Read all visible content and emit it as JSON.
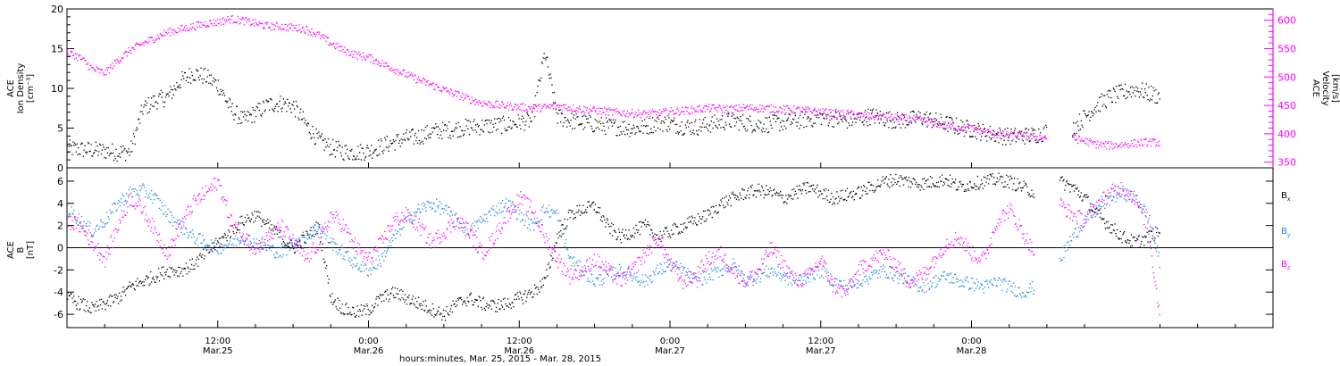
{
  "chart_data": [
    {
      "type": "scatter",
      "panel": "top",
      "ylabel_left": [
        "ACE",
        "Ion Density",
        "[cm⁻³]"
      ],
      "ylabel_right": [
        "ACE",
        "Velocity",
        "[km/s]"
      ],
      "yticks_left": [
        "0",
        "5",
        "10",
        "15",
        "20"
      ],
      "yticks_right": [
        "350",
        "400",
        "450",
        "500",
        "550",
        "600"
      ],
      "ylim_left": [
        0,
        20
      ],
      "ylim_right": [
        340,
        620
      ],
      "xlim_hours": [
        0,
        96
      ],
      "grid": false,
      "series": [
        {
          "axis": "left",
          "color": "#000000",
          "x": [
            0,
            1,
            2,
            3,
            4,
            5,
            6,
            7,
            8,
            9,
            10,
            11,
            12,
            13,
            14,
            15,
            16,
            17,
            18,
            19,
            20,
            21,
            22,
            23,
            24,
            25,
            26,
            27,
            28,
            29,
            30,
            31,
            32,
            33,
            34,
            35,
            36,
            37,
            38,
            39,
            40,
            41,
            42,
            43,
            44,
            45,
            46,
            47,
            48,
            49,
            50,
            51,
            52,
            53,
            54,
            55,
            56,
            57,
            58,
            59,
            60,
            61,
            62,
            63,
            64,
            65,
            66,
            67,
            68,
            69,
            70,
            71,
            72,
            73,
            74,
            75,
            76,
            77,
            78,
            79,
            80,
            81,
            82,
            83,
            84,
            85,
            86,
            87
          ],
          "y": [
            2.5,
            2.4,
            2.3,
            2.2,
            2.0,
            2.1,
            7.5,
            8.5,
            9.0,
            11.0,
            12.0,
            11.5,
            10.5,
            7.5,
            6.0,
            7.0,
            8.0,
            8.2,
            7.8,
            5.5,
            3.5,
            2.6,
            2.1,
            2.0,
            2.2,
            2.8,
            3.3,
            3.8,
            4.0,
            4.6,
            4.8,
            5.0,
            5.2,
            5.3,
            5.4,
            5.5,
            5.8,
            6.0,
            14.5,
            6.5,
            6.0,
            5.8,
            5.5,
            5.3,
            5.2,
            5.0,
            5.2,
            5.8,
            5.6,
            5.3,
            5.2,
            5.5,
            5.8,
            6.0,
            5.7,
            5.5,
            5.6,
            5.8,
            6.0,
            6.2,
            6.5,
            6.3,
            6.0,
            6.2,
            6.6,
            6.3,
            6.0,
            6.1,
            6.4,
            6.0,
            5.6,
            5.2,
            4.9,
            4.5,
            4.2,
            4.0,
            4.1,
            4.2,
            4.6,
            null,
            5.0,
            6.5,
            8.0,
            9.0,
            9.5,
            10.0,
            9.5,
            9.0
          ]
        },
        {
          "axis": "right",
          "color": "#ff00ff",
          "x": [
            0,
            1,
            2,
            3,
            4,
            5,
            6,
            7,
            8,
            9,
            10,
            11,
            12,
            13,
            14,
            15,
            16,
            17,
            18,
            19,
            20,
            21,
            22,
            23,
            24,
            25,
            26,
            27,
            28,
            29,
            30,
            31,
            32,
            33,
            34,
            35,
            36,
            37,
            38,
            39,
            40,
            41,
            42,
            43,
            44,
            45,
            46,
            47,
            48,
            49,
            50,
            51,
            52,
            53,
            54,
            55,
            56,
            57,
            58,
            59,
            60,
            61,
            62,
            63,
            64,
            65,
            66,
            67,
            68,
            69,
            70,
            71,
            72,
            73,
            74,
            75,
            76,
            77,
            78,
            79,
            80,
            81,
            82,
            83,
            84,
            85,
            86,
            87
          ],
          "y": [
            545,
            535,
            515,
            508,
            530,
            548,
            560,
            570,
            580,
            585,
            590,
            595,
            598,
            603,
            600,
            595,
            590,
            590,
            588,
            585,
            575,
            560,
            548,
            540,
            535,
            525,
            515,
            505,
            495,
            487,
            478,
            470,
            462,
            455,
            452,
            450,
            448,
            446,
            447,
            450,
            447,
            444,
            442,
            440,
            438,
            437,
            436,
            437,
            440,
            441,
            444,
            446,
            445,
            444,
            447,
            446,
            445,
            444,
            443,
            441,
            439,
            437,
            436,
            434,
            432,
            431,
            429,
            427,
            425,
            420,
            415,
            412,
            410,
            405,
            400,
            398,
            397,
            395,
            395,
            null,
            393,
            388,
            382,
            380,
            382,
            384,
            386,
            385
          ]
        }
      ]
    },
    {
      "type": "scatter",
      "panel": "bottom",
      "ylabel": [
        "ACE",
        "B",
        "[nT]"
      ],
      "yticks": [
        "6",
        "4",
        "2",
        "0",
        "-2",
        "-4",
        "-6"
      ],
      "ylim": [
        -7.2,
        7.2
      ],
      "xlim_hours": [
        0,
        96
      ],
      "zero_line": true,
      "grid": false,
      "legend": [
        {
          "label": "B",
          "sub": "x",
          "color": "#000000"
        },
        {
          "label": "B",
          "sub": "y",
          "color": "#1e88e5"
        },
        {
          "label": "B",
          "sub": "z",
          "color": "#ff00ff"
        }
      ],
      "series": [
        {
          "name": "Bx",
          "color": "#000000",
          "x": [
            0,
            1,
            2,
            3,
            4,
            5,
            6,
            7,
            8,
            9,
            10,
            11,
            12,
            13,
            14,
            15,
            16,
            17,
            18,
            19,
            20,
            21,
            22,
            23,
            24,
            25,
            26,
            27,
            28,
            29,
            30,
            31,
            32,
            33,
            34,
            35,
            36,
            37,
            38,
            39,
            40,
            41,
            42,
            43,
            44,
            45,
            46,
            47,
            48,
            49,
            50,
            51,
            52,
            53,
            54,
            55,
            56,
            57,
            58,
            59,
            60,
            61,
            62,
            63,
            64,
            65,
            66,
            67,
            68,
            69,
            70,
            71,
            72,
            73,
            74,
            75,
            76,
            77,
            78,
            79,
            80,
            81,
            82,
            83,
            84,
            85,
            86,
            87
          ],
          "y": [
            -4.5,
            -5.0,
            -5.5,
            -5.0,
            -4.5,
            -3.5,
            -3.0,
            -2.5,
            -2.0,
            -2.0,
            -1.5,
            -0.5,
            0.5,
            1.5,
            2.5,
            3.0,
            2.0,
            1.0,
            0.0,
            1.0,
            2.0,
            -4.5,
            -5.5,
            -5.8,
            -5.5,
            -4.5,
            -4.0,
            -4.5,
            -5.0,
            -5.5,
            -6.0,
            -5.0,
            -4.5,
            -5.0,
            -5.2,
            -5.0,
            -4.5,
            -4.0,
            -3.0,
            1.0,
            3.0,
            3.5,
            3.8,
            2.0,
            1.0,
            1.5,
            2.0,
            1.0,
            1.5,
            2.0,
            2.5,
            3.0,
            4.0,
            4.5,
            5.0,
            5.2,
            5.0,
            4.5,
            5.0,
            5.5,
            5.0,
            4.5,
            4.8,
            5.0,
            5.5,
            6.0,
            6.2,
            6.0,
            5.8,
            6.0,
            6.2,
            5.5,
            5.8,
            6.0,
            6.2,
            6.0,
            5.5,
            5.0,
            null,
            6.0,
            5.5,
            4.5,
            3.0,
            2.0,
            1.0,
            0.5,
            1.0,
            1.5
          ]
        },
        {
          "name": "By",
          "color": "#1e88e5",
          "x": [
            0,
            1,
            2,
            3,
            4,
            5,
            6,
            7,
            8,
            9,
            10,
            11,
            12,
            13,
            14,
            15,
            16,
            17,
            18,
            19,
            20,
            21,
            22,
            23,
            24,
            25,
            26,
            27,
            28,
            29,
            30,
            31,
            32,
            33,
            34,
            35,
            36,
            37,
            38,
            39,
            40,
            41,
            42,
            43,
            44,
            45,
            46,
            47,
            48,
            49,
            50,
            51,
            52,
            53,
            54,
            55,
            56,
            57,
            58,
            59,
            60,
            61,
            62,
            63,
            64,
            65,
            66,
            67,
            68,
            69,
            70,
            71,
            72,
            73,
            74,
            75,
            76,
            77,
            78,
            79,
            80,
            81,
            82,
            83,
            84,
            85,
            86,
            87
          ],
          "y": [
            3.5,
            2.5,
            1.5,
            2.5,
            4.0,
            5.0,
            5.2,
            4.5,
            3.0,
            2.0,
            1.0,
            0.5,
            0.0,
            0.5,
            1.0,
            0.5,
            0.0,
            -0.5,
            0.5,
            1.0,
            2.0,
            0.5,
            -0.5,
            -1.5,
            -2.0,
            -1.0,
            1.0,
            2.5,
            3.5,
            4.0,
            3.5,
            2.5,
            1.5,
            2.5,
            3.5,
            4.0,
            3.0,
            2.0,
            3.5,
            3.0,
            -1.0,
            -2.0,
            -3.0,
            -2.5,
            -2.0,
            -2.5,
            -3.0,
            -2.0,
            -1.5,
            -2.0,
            -3.0,
            -2.5,
            -2.0,
            -1.5,
            -3.0,
            -2.5,
            -2.0,
            -2.5,
            -3.0,
            -2.5,
            -2.0,
            -3.0,
            -3.5,
            -3.0,
            -2.5,
            -2.0,
            -2.5,
            -3.0,
            -3.5,
            -3.0,
            -2.5,
            -3.0,
            -3.2,
            -3.5,
            -3.0,
            -3.5,
            -4.0,
            -3.5,
            null,
            -1.0,
            1.0,
            2.5,
            3.5,
            4.5,
            5.0,
            4.5,
            3.0,
            -1.5
          ]
        },
        {
          "name": "Bz",
          "color": "#ff00ff",
          "x": [
            0,
            1,
            2,
            3,
            4,
            5,
            6,
            7,
            8,
            9,
            10,
            11,
            12,
            13,
            14,
            15,
            16,
            17,
            18,
            19,
            20,
            21,
            22,
            23,
            24,
            25,
            26,
            27,
            28,
            29,
            30,
            31,
            32,
            33,
            34,
            35,
            36,
            37,
            38,
            39,
            40,
            41,
            42,
            43,
            44,
            45,
            46,
            47,
            48,
            49,
            50,
            51,
            52,
            53,
            54,
            55,
            56,
            57,
            58,
            59,
            60,
            61,
            62,
            63,
            64,
            65,
            66,
            67,
            68,
            69,
            70,
            71,
            72,
            73,
            74,
            75,
            76,
            77,
            78,
            79,
            80,
            81,
            82,
            83,
            84,
            85,
            86,
            87
          ],
          "y": [
            2.5,
            2.0,
            0.5,
            -1.0,
            2.0,
            4.5,
            3.5,
            1.5,
            -0.5,
            2.0,
            4.0,
            5.0,
            6.0,
            2.5,
            1.0,
            0.0,
            1.0,
            2.0,
            0.5,
            -1.0,
            0.5,
            3.0,
            2.0,
            0.0,
            -1.0,
            0.5,
            2.5,
            3.0,
            2.0,
            0.5,
            1.5,
            2.5,
            1.5,
            -0.5,
            1.0,
            3.0,
            4.5,
            3.5,
            1.0,
            -1.0,
            -2.5,
            -2.0,
            -1.0,
            -2.0,
            -3.0,
            -2.0,
            -0.5,
            1.0,
            -1.5,
            -3.0,
            -2.5,
            -1.0,
            -0.5,
            -2.0,
            -3.0,
            -2.0,
            0.0,
            -1.5,
            -3.0,
            -2.5,
            -1.0,
            -3.5,
            -4.0,
            -2.0,
            -1.0,
            -0.5,
            -1.5,
            -3.0,
            -2.5,
            -1.0,
            0.5,
            1.0,
            -0.5,
            -1.0,
            2.5,
            3.5,
            1.5,
            -0.5,
            null,
            4.0,
            3.0,
            2.5,
            4.0,
            5.0,
            5.5,
            4.5,
            2.0,
            -6.5
          ]
        }
      ]
    }
  ],
  "x_ticks": [
    {
      "hours": 12,
      "time": "12:00",
      "date": "Mar.25"
    },
    {
      "hours": 24,
      "time": "0:00",
      "date": "Mar.26"
    },
    {
      "hours": 36,
      "time": "12:00",
      "date": "Mar.26"
    },
    {
      "hours": 48,
      "time": "0:00",
      "date": "Mar.27"
    },
    {
      "hours": 60,
      "time": "12:00",
      "date": "Mar.27"
    },
    {
      "hours": 72,
      "time": "0:00",
      "date": "Mar.28"
    }
  ],
  "xlabel": "hours:minutes, Mar. 25, 2015 - Mar. 28, 2015"
}
